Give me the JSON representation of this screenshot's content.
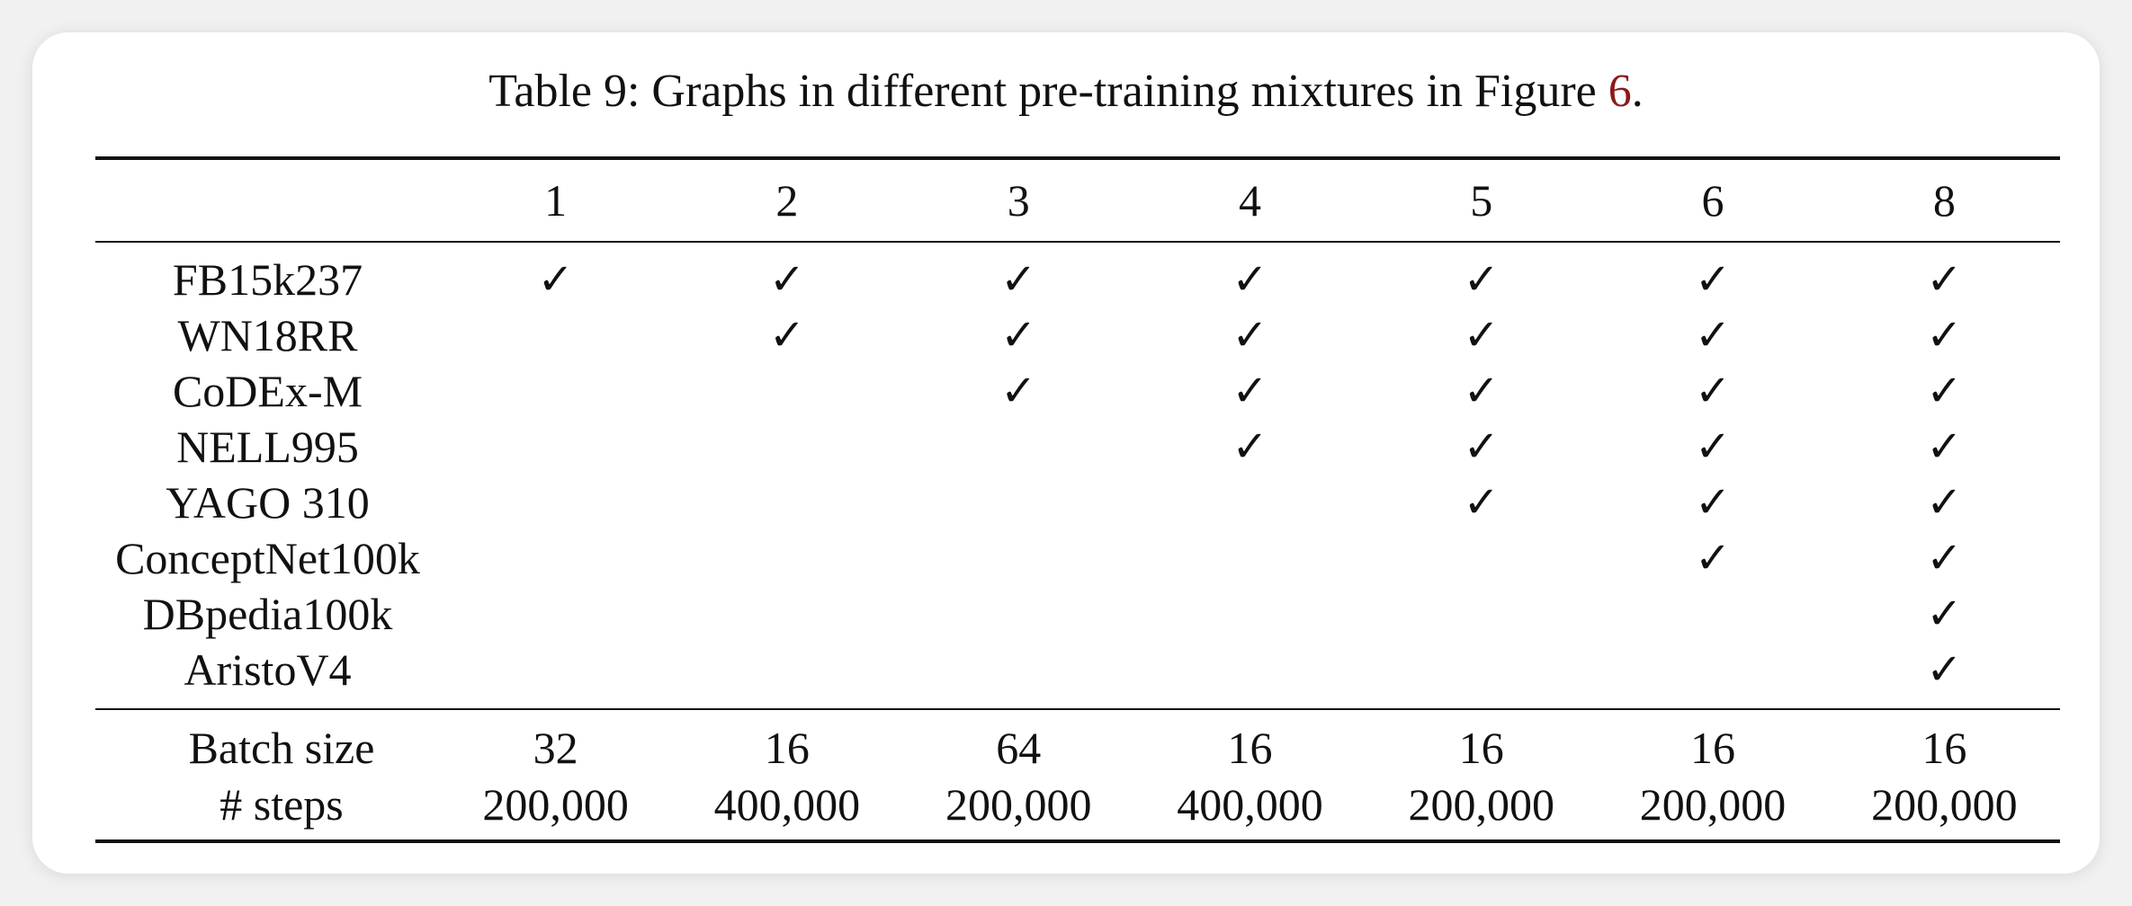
{
  "caption": {
    "prefix": "Table 9: Graphs in different pre-training mixtures in Figure ",
    "ref": "6",
    "suffix": "."
  },
  "table": {
    "columns": [
      "1",
      "2",
      "3",
      "4",
      "5",
      "6",
      "8"
    ],
    "check_symbol": "✓",
    "graph_rows": [
      {
        "label": "FB15k237",
        "checks": [
          true,
          true,
          true,
          true,
          true,
          true,
          true
        ]
      },
      {
        "label": "WN18RR",
        "checks": [
          false,
          true,
          true,
          true,
          true,
          true,
          true
        ]
      },
      {
        "label": "CoDEx-M",
        "checks": [
          false,
          false,
          true,
          true,
          true,
          true,
          true
        ]
      },
      {
        "label": "NELL995",
        "checks": [
          false,
          false,
          false,
          true,
          true,
          true,
          true
        ]
      },
      {
        "label": "YAGO 310",
        "checks": [
          false,
          false,
          false,
          false,
          true,
          true,
          true
        ]
      },
      {
        "label": "ConceptNet100k",
        "checks": [
          false,
          false,
          false,
          false,
          false,
          true,
          true
        ]
      },
      {
        "label": "DBpedia100k",
        "checks": [
          false,
          false,
          false,
          false,
          false,
          false,
          true
        ]
      },
      {
        "label": "AristoV4",
        "checks": [
          false,
          false,
          false,
          false,
          false,
          false,
          true
        ]
      }
    ],
    "stat_rows": [
      {
        "label": "Batch size",
        "values": [
          "32",
          "16",
          "64",
          "16",
          "16",
          "16",
          "16"
        ]
      },
      {
        "label": "# steps",
        "values": [
          "200,000",
          "400,000",
          "200,000",
          "400,000",
          "200,000",
          "200,000",
          "200,000"
        ]
      }
    ]
  }
}
